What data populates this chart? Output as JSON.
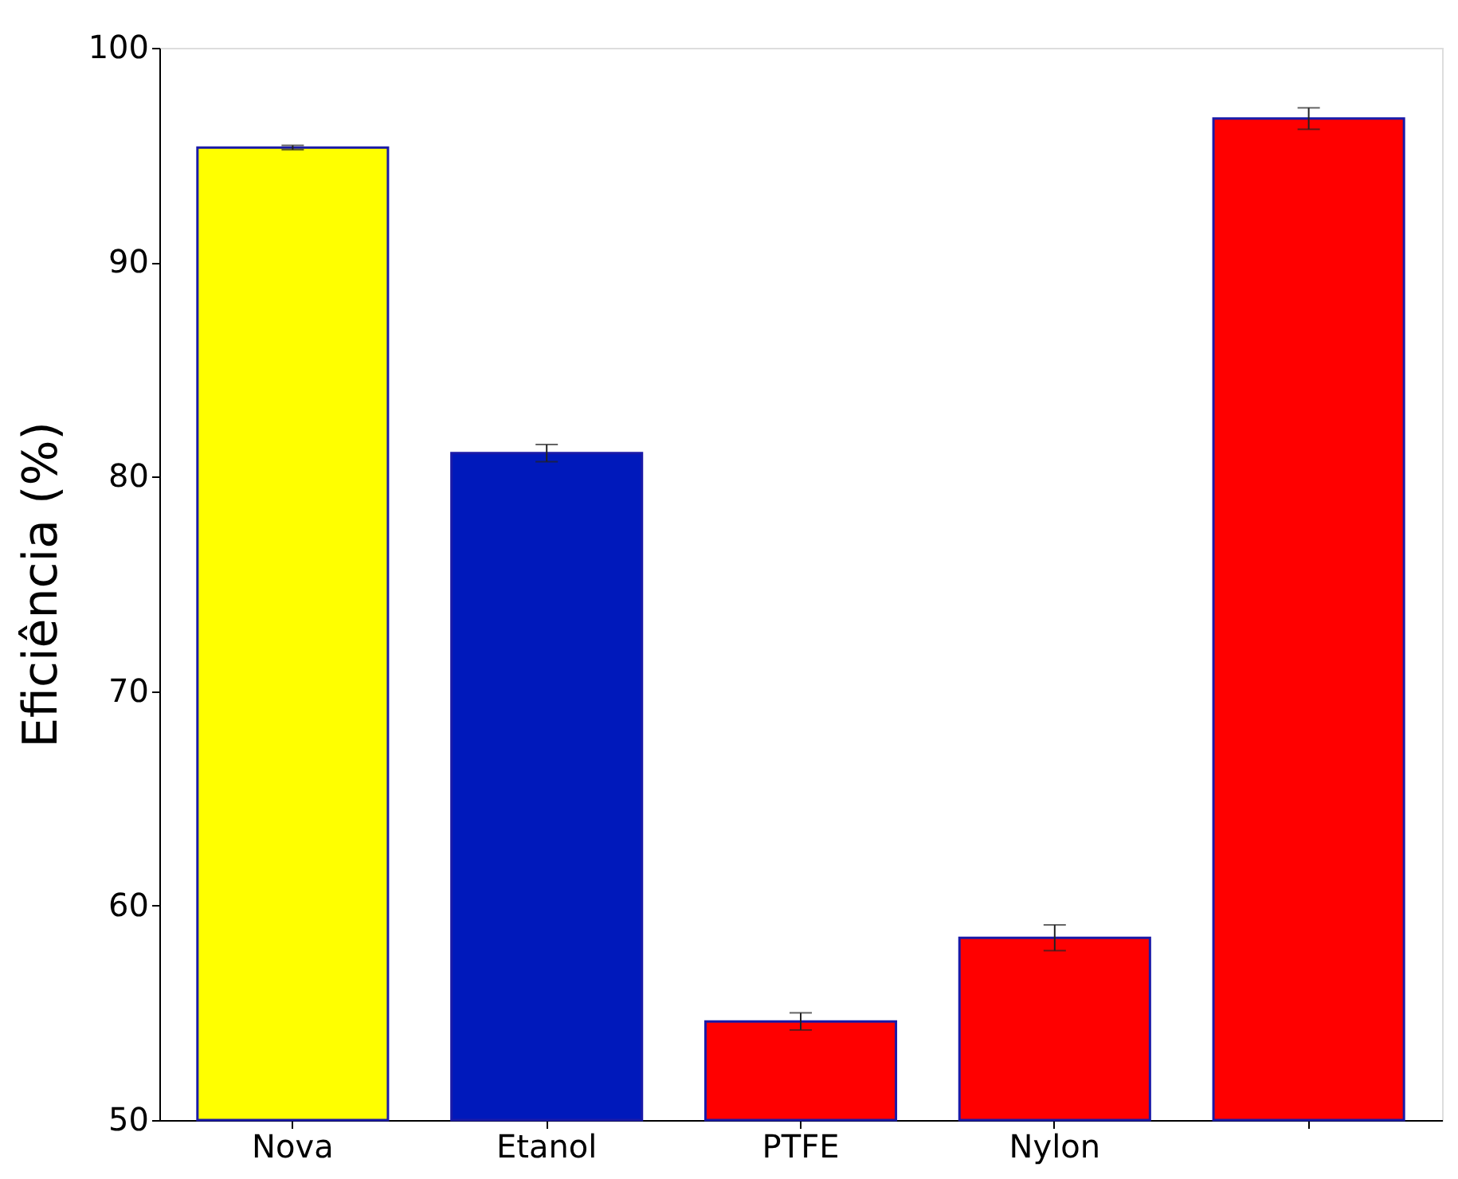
{
  "chart_data": {
    "type": "bar",
    "ylabel": "Eficiência (%)",
    "categories": [
      "Nova",
      "Etanol",
      "PTFE",
      "Nylon",
      null
    ],
    "values": [
      95.35,
      81.1,
      54.6,
      58.5,
      96.7
    ],
    "errors": [
      0.1,
      0.4,
      0.4,
      0.6,
      0.5
    ],
    "colors": [
      "#ffff00",
      "#0019bb",
      "#ff0000",
      "#ff0000",
      "#ff0000"
    ],
    "ylim": [
      50,
      100
    ],
    "yticks": [
      50,
      60,
      70,
      80,
      90,
      100
    ],
    "grid": false
  }
}
